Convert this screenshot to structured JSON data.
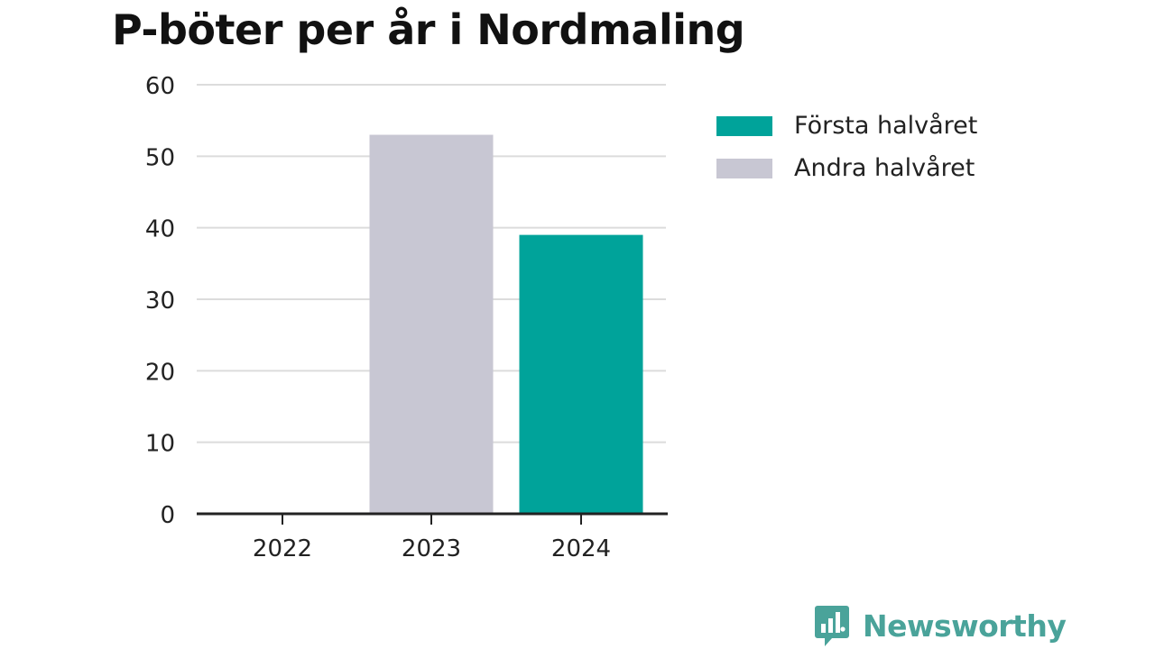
{
  "colors": {
    "first_half": "#00a39a",
    "second_half": "#c8c7d3",
    "brand": "#4aa39a",
    "grid": "#dcdcdc",
    "axis": "#222222",
    "text": "#222222"
  },
  "legend": {
    "items": [
      {
        "label": "Första halvåret",
        "color": "#00a39a"
      },
      {
        "label": "Andra halvåret",
        "color": "#c8c7d3"
      }
    ]
  },
  "brand": {
    "name": "Newsworthy",
    "icon": "chart-bubble-icon"
  },
  "chart_data": {
    "type": "bar",
    "title": "P-böter per år i Nordmaling",
    "xlabel": "",
    "ylabel": "",
    "categories": [
      "2022",
      "2023",
      "2024"
    ],
    "series": [
      {
        "name": "Första halvåret",
        "values": [
          0,
          0,
          39
        ]
      },
      {
        "name": "Andra halvåret",
        "values": [
          0,
          53,
          0
        ]
      }
    ],
    "ylim": [
      0,
      60
    ],
    "yticks": [
      0,
      10,
      20,
      30,
      40,
      50,
      60
    ],
    "grid": true,
    "legend_position": "right"
  }
}
